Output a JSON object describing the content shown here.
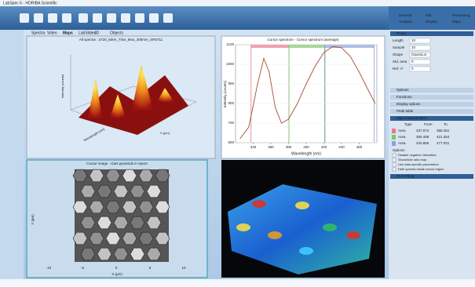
{
  "window": {
    "title": "LabSpec 6 - HORIBA Scientific"
  },
  "tabs": [
    "Spectra",
    "Video",
    "Maps",
    "LabSlides",
    "3D",
    "Objects"
  ],
  "panels": {
    "all_spectra": {
      "title": "All spectra : a720_500A_TiSe_Mos_300mm_SR0711",
      "z_label": "Intensity (counts)",
      "x_label": "X (µm)",
      "y_label": "Wavelength (nm)"
    },
    "spectrum": {
      "title": "Cursor spectrum - Cursor spectrum (average)",
      "x_label": "Wavelength (nm)",
      "y_label": "Intensity (counts)",
      "color": "#a0522d",
      "x": [
        325,
        335,
        345,
        352,
        358,
        365,
        372,
        380,
        390,
        400,
        410,
        420,
        430,
        440,
        450,
        460,
        470,
        478
      ],
      "y": [
        620,
        680,
        900,
        1030,
        960,
        780,
        700,
        720,
        800,
        900,
        990,
        1060,
        1090,
        1085,
        1040,
        960,
        870,
        800
      ],
      "xlim": [
        320,
        480
      ],
      "xticks": [
        340,
        360,
        380,
        400,
        420,
        440,
        460
      ],
      "ylim": [
        600,
        1100
      ],
      "yticks": [
        600,
        700,
        800,
        900,
        1000,
        1100
      ]
    },
    "image": {
      "title": "Cursor image - GaN pyramids in report",
      "x_label": "X (µm)",
      "y_label": "Y (µm)",
      "xticks": [
        -10,
        -5,
        0,
        5,
        10
      ]
    }
  },
  "side_panel": {
    "tabs": [
      "General",
      "Info",
      "Processing",
      "Analysis",
      "Display",
      "Maps"
    ],
    "peaks": {
      "title": "Peaks",
      "fields": [
        {
          "label": "Length",
          "value": "10"
        },
        {
          "label": "Sample",
          "value": "10"
        },
        {
          "label": "Shape",
          "value": "GaussLor"
        },
        {
          "label": "Std. area",
          "value": "0"
        },
        {
          "label": "Ref. c²",
          "value": "0"
        }
      ]
    },
    "sections": [
      "Options",
      "Functions",
      "Display options",
      "Peak table"
    ],
    "map": {
      "title": "Map characteristics",
      "columns": [
        "Type",
        "From",
        "To"
      ],
      "rows": [
        {
          "type": "Area",
          "from": 337.574,
          "to": 380.451,
          "color": "#e8788a"
        },
        {
          "type": "Area",
          "from": 380.489,
          "to": 421.354,
          "color": "#7cc86a"
        },
        {
          "type": "Area",
          "from": 420.855,
          "to": 477.021,
          "color": "#8aa0e0"
        }
      ]
    },
    "options_title": "Options",
    "options": [
      "Disable negative intensities",
      "Show/hide ratio map",
      "Use data specific parameters",
      "Hide spectra inside cursor region"
    ],
    "cls": "CLS Fitting"
  }
}
